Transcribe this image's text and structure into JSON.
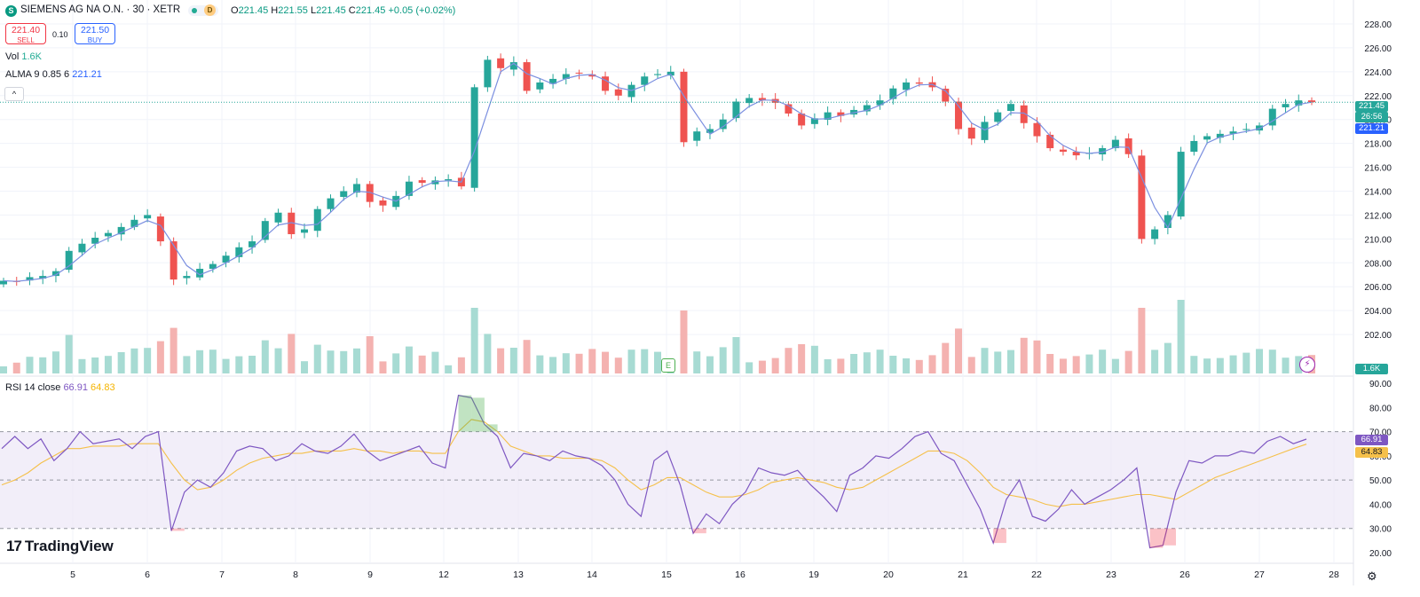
{
  "header": {
    "symbol": "SIEMENS AG NA O.N. · 30 · XETR",
    "symbol_icon": "S",
    "delayed_badge": "D",
    "ohlc": {
      "o_label": "O",
      "o": "221.45",
      "h_label": "H",
      "h": "221.55",
      "l_label": "L",
      "l": "221.45",
      "c_label": "C",
      "c": "221.45",
      "change": "+0.05 (+0.02%)"
    }
  },
  "trade": {
    "sell_price": "221.40",
    "sell_label": "SELL",
    "spread": "0.10",
    "buy_price": "221.50",
    "buy_label": "BUY"
  },
  "volume_legend": {
    "label": "Vol",
    "value": "1.6K"
  },
  "alma_legend": {
    "label": "ALMA 9 0.85 6",
    "value": "221.21"
  },
  "collapse_icon": "^",
  "rsi_legend": {
    "label": "RSI 14 close",
    "rsi": "66.91",
    "ma": "64.83"
  },
  "price_tags": {
    "last": "221.45",
    "countdown": "26:56",
    "alma": "221.21",
    "volume": "1.6K",
    "rsi": "66.91",
    "rsi_ma": "64.83"
  },
  "earnings_marker": "E",
  "logo": {
    "mark": "17",
    "text": "TradingView"
  },
  "icons": {
    "bolt": "lightning-icon",
    "settings": "gear-icon"
  },
  "colors": {
    "up": "#26a69a",
    "down": "#ef5350",
    "alma": "#7b8fe0",
    "rsi": "#7e57c2",
    "rsi_ma": "#f5c04a",
    "band": "#ede7f6"
  },
  "chart_data": [
    {
      "type": "candlestick",
      "price_axis": {
        "range": [
          200,
          228
        ],
        "ticks": [
          "228.00",
          "226.00",
          "224.00",
          "222.00",
          "220.00",
          "218.00",
          "216.00",
          "214.00",
          "212.00",
          "210.00",
          "208.00",
          "206.00",
          "204.00",
          "202.00"
        ]
      },
      "x_axis_ticks": [
        "5",
        "6",
        "7",
        "8",
        "9",
        "12",
        "13",
        "14",
        "15",
        "16",
        "19",
        "20",
        "21",
        "22",
        "23",
        "26",
        "27",
        "28"
      ],
      "price_series_close": [
        206.5,
        206.4,
        206.8,
        206.9,
        207.3,
        209.0,
        209.6,
        210.1,
        210.5,
        211.0,
        211.6,
        212.0,
        209.8,
        206.6,
        206.9,
        207.5,
        207.9,
        208.6,
        209.3,
        209.8,
        211.5,
        212.2,
        210.4,
        210.8,
        212.5,
        213.4,
        214.0,
        214.6,
        213.1,
        212.8,
        213.6,
        214.8,
        214.7,
        214.9,
        215.0,
        214.4,
        222.7,
        225.0,
        224.3,
        224.8,
        222.4,
        223.1,
        223.4,
        223.8,
        223.9,
        223.6,
        222.4,
        222.0,
        222.9,
        223.6,
        223.8,
        224.0,
        218.1,
        219.0,
        219.2,
        220.0,
        221.5,
        221.8,
        221.6,
        221.4,
        220.5,
        219.5,
        220.1,
        220.6,
        220.3,
        220.8,
        221.2,
        221.6,
        222.6,
        223.1,
        223.0,
        222.7,
        221.5,
        219.2,
        218.4,
        219.8,
        220.6,
        221.3,
        219.7,
        218.6,
        217.6,
        217.3,
        217.0,
        217.2,
        217.6,
        218.3,
        217.1,
        210.0,
        210.8,
        212.0,
        217.3,
        218.2,
        218.6,
        218.8,
        219.0,
        219.2,
        219.5,
        220.9,
        221.3,
        221.6,
        221.45
      ],
      "candles_note": "30-minute candles, one per visible bar"
    },
    {
      "type": "bar",
      "name": "Vol",
      "value_last": "1.6K"
    },
    {
      "type": "line",
      "name": "RSI 14 close",
      "y_axis": {
        "range": [
          20,
          90
        ],
        "ticks": [
          "90.00",
          "80.00",
          "70.00",
          "60.00",
          "50.00",
          "40.00",
          "30.00",
          "20.00"
        ]
      },
      "band": [
        30,
        70
      ],
      "mid_line": 50,
      "rsi": [
        63,
        68,
        63,
        67,
        58,
        63,
        70,
        65,
        66,
        67,
        63,
        68,
        70,
        29,
        45,
        50,
        47,
        53,
        62,
        64,
        63,
        58,
        60,
        65,
        62,
        61,
        64,
        69,
        62,
        58,
        60,
        62,
        64,
        57,
        55,
        85,
        84,
        73,
        68,
        55,
        61,
        60,
        58,
        62,
        60,
        59,
        56,
        50,
        40,
        35,
        58,
        62,
        48,
        28,
        36,
        32,
        40,
        45,
        55,
        53,
        52,
        54,
        48,
        43,
        37,
        52,
        55,
        60,
        59,
        63,
        68,
        70,
        61,
        58,
        48,
        38,
        24,
        42,
        50,
        35,
        33,
        38,
        46,
        40,
        43,
        46,
        50,
        55,
        22,
        23,
        45,
        58,
        57,
        60,
        60,
        62,
        61,
        66,
        68,
        65,
        66.91
      ],
      "rsi_ma": [
        48,
        50,
        53,
        57,
        60,
        63,
        63,
        64,
        64,
        64,
        65,
        65,
        65,
        57,
        50,
        46,
        47,
        50,
        54,
        57,
        59,
        60,
        61,
        61,
        62,
        62,
        62,
        63,
        62,
        62,
        61,
        62,
        62,
        61,
        61,
        70,
        75,
        74,
        70,
        64,
        62,
        60,
        60,
        59,
        59,
        59,
        58,
        55,
        50,
        46,
        48,
        51,
        51,
        48,
        45,
        43,
        43,
        44,
        46,
        49,
        50,
        51,
        50,
        49,
        47,
        46,
        47,
        50,
        53,
        56,
        59,
        62,
        62,
        61,
        58,
        53,
        47,
        44,
        43,
        42,
        40,
        39,
        40,
        40,
        41,
        42,
        43,
        44,
        44,
        43,
        42,
        45,
        48,
        51,
        53,
        55,
        57,
        59,
        61,
        63,
        64.83
      ]
    }
  ]
}
